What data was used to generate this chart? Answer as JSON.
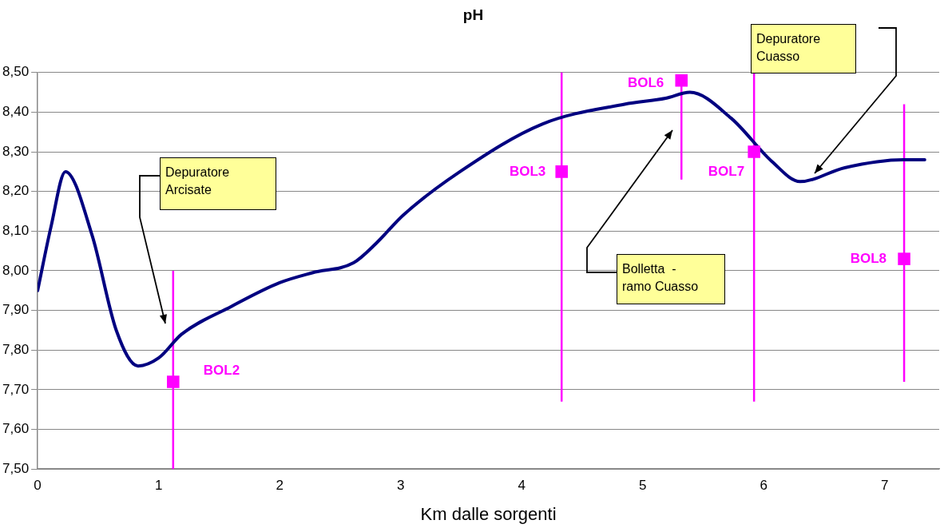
{
  "chart_data": {
    "type": "line",
    "title": "pH",
    "xlabel": "Km dalle sorgenti",
    "xlim": [
      0,
      7.45
    ],
    "xticks": [
      0,
      1,
      2,
      3,
      4,
      5,
      6,
      7
    ],
    "ylim": [
      7.5,
      8.5
    ],
    "yticks": [
      {
        "value": 7.5,
        "label": "7,50"
      },
      {
        "value": 7.6,
        "label": "7,60"
      },
      {
        "value": 7.7,
        "label": "7,70"
      },
      {
        "value": 7.8,
        "label": "7,80"
      },
      {
        "value": 7.9,
        "label": "7,90"
      },
      {
        "value": 8.0,
        "label": "8,00"
      },
      {
        "value": 8.1,
        "label": "8,10"
      },
      {
        "value": 8.2,
        "label": "8,20"
      },
      {
        "value": 8.3,
        "label": "8,30"
      },
      {
        "value": 8.4,
        "label": "8,40"
      },
      {
        "value": 8.5,
        "label": "8,50"
      }
    ],
    "grid": "y",
    "legend": false,
    "series": [
      {
        "color": "#000080",
        "marker": "none",
        "x": [
          0,
          0.11,
          0.23,
          0.45,
          0.65,
          0.83,
          1.0,
          1.19,
          1.6,
          2.0,
          2.27,
          2.61,
          2.8,
          3.02,
          3.49,
          4.17,
          4.85,
          5.19,
          5.39,
          5.73,
          6.07,
          6.3,
          6.67,
          7.15,
          7.33
        ],
        "values": [
          7.95,
          8.11,
          8.25,
          8.09,
          7.85,
          7.76,
          7.78,
          7.84,
          7.91,
          7.97,
          7.995,
          8.02,
          8.07,
          8.14,
          8.25,
          8.37,
          8.42,
          8.435,
          8.45,
          8.385,
          8.275,
          8.225,
          8.26,
          8.28,
          8.28
        ]
      },
      {
        "type": "scatter",
        "color": "#ff00ff",
        "marker": "square",
        "x": [
          1.12,
          4.33,
          5.32,
          5.92,
          7.16
        ],
        "values": [
          7.72,
          8.25,
          8.48,
          8.3,
          8.03
        ],
        "errors": [
          [
            7.5,
            8.0
          ],
          [
            7.67,
            8.5
          ],
          [
            8.23,
            8.48
          ],
          [
            7.67,
            8.5
          ],
          [
            7.72,
            8.42
          ]
        ]
      }
    ],
    "annotations": [
      {
        "text": "BOL2",
        "x": 1.12,
        "y": 7.72
      },
      {
        "text": "BOL3",
        "x": 4.33,
        "y": 8.25
      },
      {
        "text": "BOL6",
        "x": 5.32,
        "y": 8.48
      },
      {
        "text": "BOL7",
        "x": 5.92,
        "y": 8.3
      },
      {
        "text": "BOL8",
        "x": 7.16,
        "y": 8.03
      },
      "Depuratore\nArcisate",
      "Bolletta  -\nramo Cuasso",
      "Depuratore\nCuasso"
    ]
  }
}
